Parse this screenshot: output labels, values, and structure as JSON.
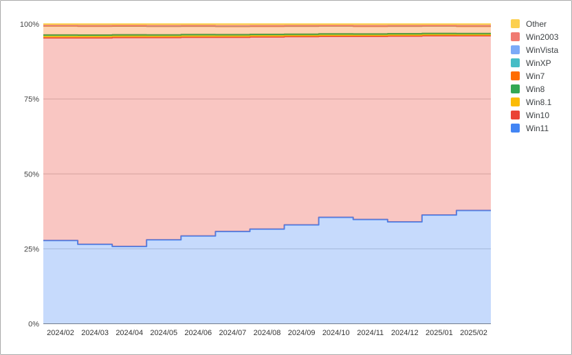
{
  "colors": {
    "background": "#ffffff",
    "gridline": "#cccccc",
    "baseline": "#7a7a7a",
    "axis_text": "#444444",
    "legend_text": "#3c4043",
    "frame_border": "#a8a8a8"
  },
  "chart_data": {
    "type": "area",
    "variant": "stepped-stacked-percent",
    "title": "",
    "xlabel": "",
    "ylabel": "",
    "ylim": [
      0,
      100
    ],
    "y_tick_values": [
      0,
      25,
      50,
      75,
      100
    ],
    "y_ticks": [
      "0%",
      "25%",
      "50%",
      "75%",
      "100%"
    ],
    "grid": "horizontal",
    "legend_position": "right",
    "area_opacity": 0.3,
    "line_width": 2,
    "categories": [
      "2024/02",
      "2024/03",
      "2024/04",
      "2024/05",
      "2024/06",
      "2024/07",
      "2024/08",
      "2024/09",
      "2024/10",
      "2024/11",
      "2024/12",
      "2025/01",
      "2025/02"
    ],
    "series_bottom_to_top": [
      {
        "name": "Win11",
        "color": "#4285F4",
        "values": [
          27.8,
          26.5,
          25.8,
          28.0,
          29.3,
          30.8,
          31.6,
          33.0,
          35.5,
          34.8,
          34.0,
          36.3,
          37.8
        ]
      },
      {
        "name": "Win10",
        "color": "#EA4335",
        "values": [
          67.6,
          68.9,
          69.7,
          67.5,
          66.3,
          64.8,
          64.1,
          62.8,
          60.4,
          61.1,
          62.0,
          59.8,
          58.3
        ]
      },
      {
        "name": "Win8.1",
        "color": "#FBBC04",
        "values": [
          0.5,
          0.49,
          0.48,
          0.47,
          0.46,
          0.45,
          0.44,
          0.43,
          0.42,
          0.41,
          0.4,
          0.39,
          0.38
        ]
      },
      {
        "name": "Win8",
        "color": "#34A853",
        "values": [
          0.45,
          0.44,
          0.44,
          0.43,
          0.43,
          0.42,
          0.42,
          0.41,
          0.41,
          0.4,
          0.4,
          0.39,
          0.39
        ]
      },
      {
        "name": "Win7",
        "color": "#FF6D01",
        "values": [
          3.0,
          2.95,
          2.9,
          2.85,
          2.8,
          2.75,
          2.7,
          2.65,
          2.6,
          2.55,
          2.5,
          2.45,
          2.4
        ]
      },
      {
        "name": "WinXP",
        "color": "#46BDC6",
        "values": [
          0.16,
          0.16,
          0.16,
          0.16,
          0.16,
          0.16,
          0.16,
          0.16,
          0.16,
          0.16,
          0.16,
          0.16,
          0.16
        ]
      },
      {
        "name": "WinVista",
        "color": "#7BAAF7",
        "values": [
          0.04,
          0.04,
          0.04,
          0.04,
          0.04,
          0.04,
          0.04,
          0.04,
          0.04,
          0.04,
          0.04,
          0.04,
          0.04
        ]
      },
      {
        "name": "Win2003",
        "color": "#F07B72",
        "values": [
          0.02,
          0.02,
          0.02,
          0.02,
          0.02,
          0.02,
          0.02,
          0.02,
          0.02,
          0.02,
          0.02,
          0.02,
          0.02
        ]
      },
      {
        "name": "Other",
        "color": "#FCD04F",
        "values": [
          0.43,
          0.5,
          0.46,
          0.53,
          0.49,
          0.56,
          0.52,
          0.49,
          0.45,
          0.52,
          0.48,
          0.45,
          0.51
        ]
      }
    ],
    "legend_order_top_to_bottom": [
      "Other",
      "Win2003",
      "WinVista",
      "WinXP",
      "Win7",
      "Win8",
      "Win8.1",
      "Win10",
      "Win11"
    ]
  }
}
